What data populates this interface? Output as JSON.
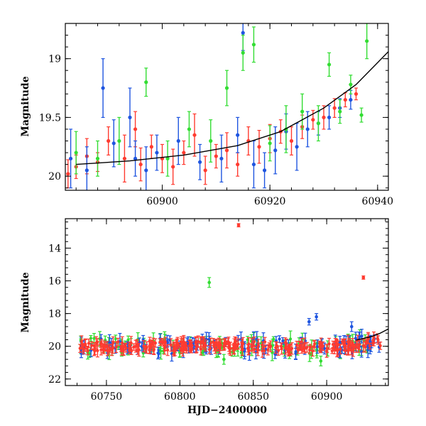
{
  "chart_data": [
    {
      "type": "scatter",
      "panel": "top",
      "title": "",
      "xlabel": "",
      "ylabel": "Magnitude",
      "xlim": [
        60882,
        60942
      ],
      "ylim": [
        20.12,
        18.7
      ],
      "y_inverted": true,
      "x_major_ticks": [
        60900,
        60920,
        60940
      ],
      "x_tick_labels": [
        "60900",
        "60920",
        "60940"
      ],
      "y_major_ticks": [
        19,
        19.5,
        20
      ],
      "y_tick_labels": [
        "19",
        "19.5",
        "20"
      ],
      "grid": false,
      "legend": "none",
      "series": [
        {
          "color": "#ff3b30",
          "points": [
            [
              60882.5,
              19.98,
              0.12
            ],
            [
              60884,
              19.92,
              0.1
            ],
            [
              60886,
              19.83,
              0.15
            ],
            [
              60888,
              19.88,
              0.08
            ],
            [
              60890,
              19.7,
              0.12
            ],
            [
              60893,
              19.85,
              0.2
            ],
            [
              60895,
              19.6,
              0.15
            ],
            [
              60896,
              19.9,
              0.14
            ],
            [
              60898,
              19.75,
              0.1
            ],
            [
              60900,
              19.85,
              0.12
            ],
            [
              60902,
              19.92,
              0.15
            ],
            [
              60904,
              19.8,
              0.1
            ],
            [
              60906,
              19.65,
              0.18
            ],
            [
              60908,
              19.95,
              0.12
            ],
            [
              60910,
              19.83,
              0.1
            ],
            [
              60912,
              19.78,
              0.15
            ],
            [
              60914,
              19.9,
              0.1
            ],
            [
              60916,
              19.7,
              0.12
            ],
            [
              60918,
              19.75,
              0.14
            ],
            [
              60920,
              19.68,
              0.12
            ],
            [
              60922,
              19.62,
              0.1
            ],
            [
              60924,
              19.7,
              0.12
            ],
            [
              60926,
              19.58,
              0.1
            ],
            [
              60928,
              19.52,
              0.08
            ],
            [
              60930,
              19.5,
              0.1
            ],
            [
              60932,
              19.42,
              0.08
            ],
            [
              60934,
              19.35,
              0.06
            ],
            [
              60936,
              19.3,
              0.05
            ]
          ]
        },
        {
          "color": "#1f55e0",
          "points": [
            [
              60883,
              19.85,
              0.25
            ],
            [
              60886,
              19.95,
              0.2
            ],
            [
              60889,
              19.25,
              0.25
            ],
            [
              60891,
              19.72,
              0.2
            ],
            [
              60894,
              19.5,
              0.25
            ],
            [
              60895,
              19.85,
              0.15
            ],
            [
              60897,
              19.95,
              0.2
            ],
            [
              60899,
              19.8,
              0.15
            ],
            [
              60903,
              19.7,
              0.2
            ],
            [
              60907,
              19.88,
              0.15
            ],
            [
              60911,
              19.85,
              0.2
            ],
            [
              60914,
              19.65,
              0.15
            ],
            [
              60915,
              18.78,
              0.15
            ],
            [
              60917,
              19.9,
              0.2
            ],
            [
              60919,
              19.95,
              0.15
            ],
            [
              60921,
              19.78,
              0.2
            ],
            [
              60923,
              19.62,
              0.15
            ],
            [
              60925,
              19.75,
              0.2
            ],
            [
              60927,
              19.6,
              0.15
            ],
            [
              60929,
              19.55,
              0.1
            ],
            [
              60931,
              19.5,
              0.1
            ],
            [
              60933,
              19.42,
              0.08
            ],
            [
              60935,
              19.35,
              0.08
            ]
          ]
        },
        {
          "color": "#33dd33",
          "points": [
            [
              60884,
              19.8,
              0.18
            ],
            [
              60888,
              19.85,
              0.15
            ],
            [
              60892,
              19.7,
              0.2
            ],
            [
              60897,
              19.2,
              0.12
            ],
            [
              60901,
              19.85,
              0.15
            ],
            [
              60905,
              19.6,
              0.15
            ],
            [
              60909,
              19.7,
              0.18
            ],
            [
              60912,
              19.25,
              0.15
            ],
            [
              60915,
              18.95,
              0.15
            ],
            [
              60917,
              18.88,
              0.15
            ],
            [
              60920,
              19.72,
              0.15
            ],
            [
              60923,
              19.6,
              0.2
            ],
            [
              60926,
              19.45,
              0.15
            ],
            [
              60929,
              19.55,
              0.15
            ],
            [
              60931,
              19.05,
              0.1
            ],
            [
              60933,
              19.45,
              0.1
            ],
            [
              60935,
              19.22,
              0.08
            ],
            [
              60937,
              19.48,
              0.06
            ],
            [
              60938,
              18.85,
              0.15
            ]
          ]
        }
      ],
      "model_curve": [
        [
          60884,
          19.9
        ],
        [
          60894,
          19.87
        ],
        [
          60904,
          19.82
        ],
        [
          60914,
          19.74
        ],
        [
          60922,
          19.62
        ],
        [
          60930,
          19.42
        ],
        [
          60936,
          19.22
        ],
        [
          60942,
          18.94
        ]
      ]
    },
    {
      "type": "scatter",
      "panel": "bottom",
      "title": "",
      "xlabel": "HJD−2400000",
      "ylabel": "Magnitude",
      "xlim": [
        60722,
        60942
      ],
      "ylim": [
        22.4,
        12.2
      ],
      "y_inverted": true,
      "x_major_ticks": [
        60750,
        60800,
        60850,
        60900
      ],
      "x_tick_labels": [
        "60750",
        "60800",
        "60850",
        "60900"
      ],
      "y_major_ticks": [
        14,
        16,
        18,
        20,
        22
      ],
      "y_tick_labels": [
        "14",
        "16",
        "18",
        "20",
        "22"
      ],
      "grid": false,
      "legend": "none",
      "series": [
        {
          "color": "#ff3b30",
          "outliers": [
            [
              60840,
              12.6,
              0.1
            ],
            [
              60925,
              15.8,
              0.1
            ]
          ]
        },
        {
          "color": "#1f55e0",
          "outliers": [
            [
              60888,
              18.5,
              0.2
            ],
            [
              60893,
              18.2,
              0.2
            ],
            [
              60917,
              18.8,
              0.3
            ]
          ]
        },
        {
          "color": "#33dd33",
          "outliers": [
            [
              60820,
              16.1,
              0.3
            ],
            [
              60830,
              20.8,
              0.3
            ],
            [
              60896,
              20.9,
              0.3
            ]
          ]
        }
      ],
      "band_center_mag": 20.0,
      "model_curve": [
        [
          60920,
          19.62
        ],
        [
          60930,
          19.42
        ],
        [
          60936,
          19.22
        ],
        [
          60942,
          18.94
        ]
      ]
    }
  ]
}
